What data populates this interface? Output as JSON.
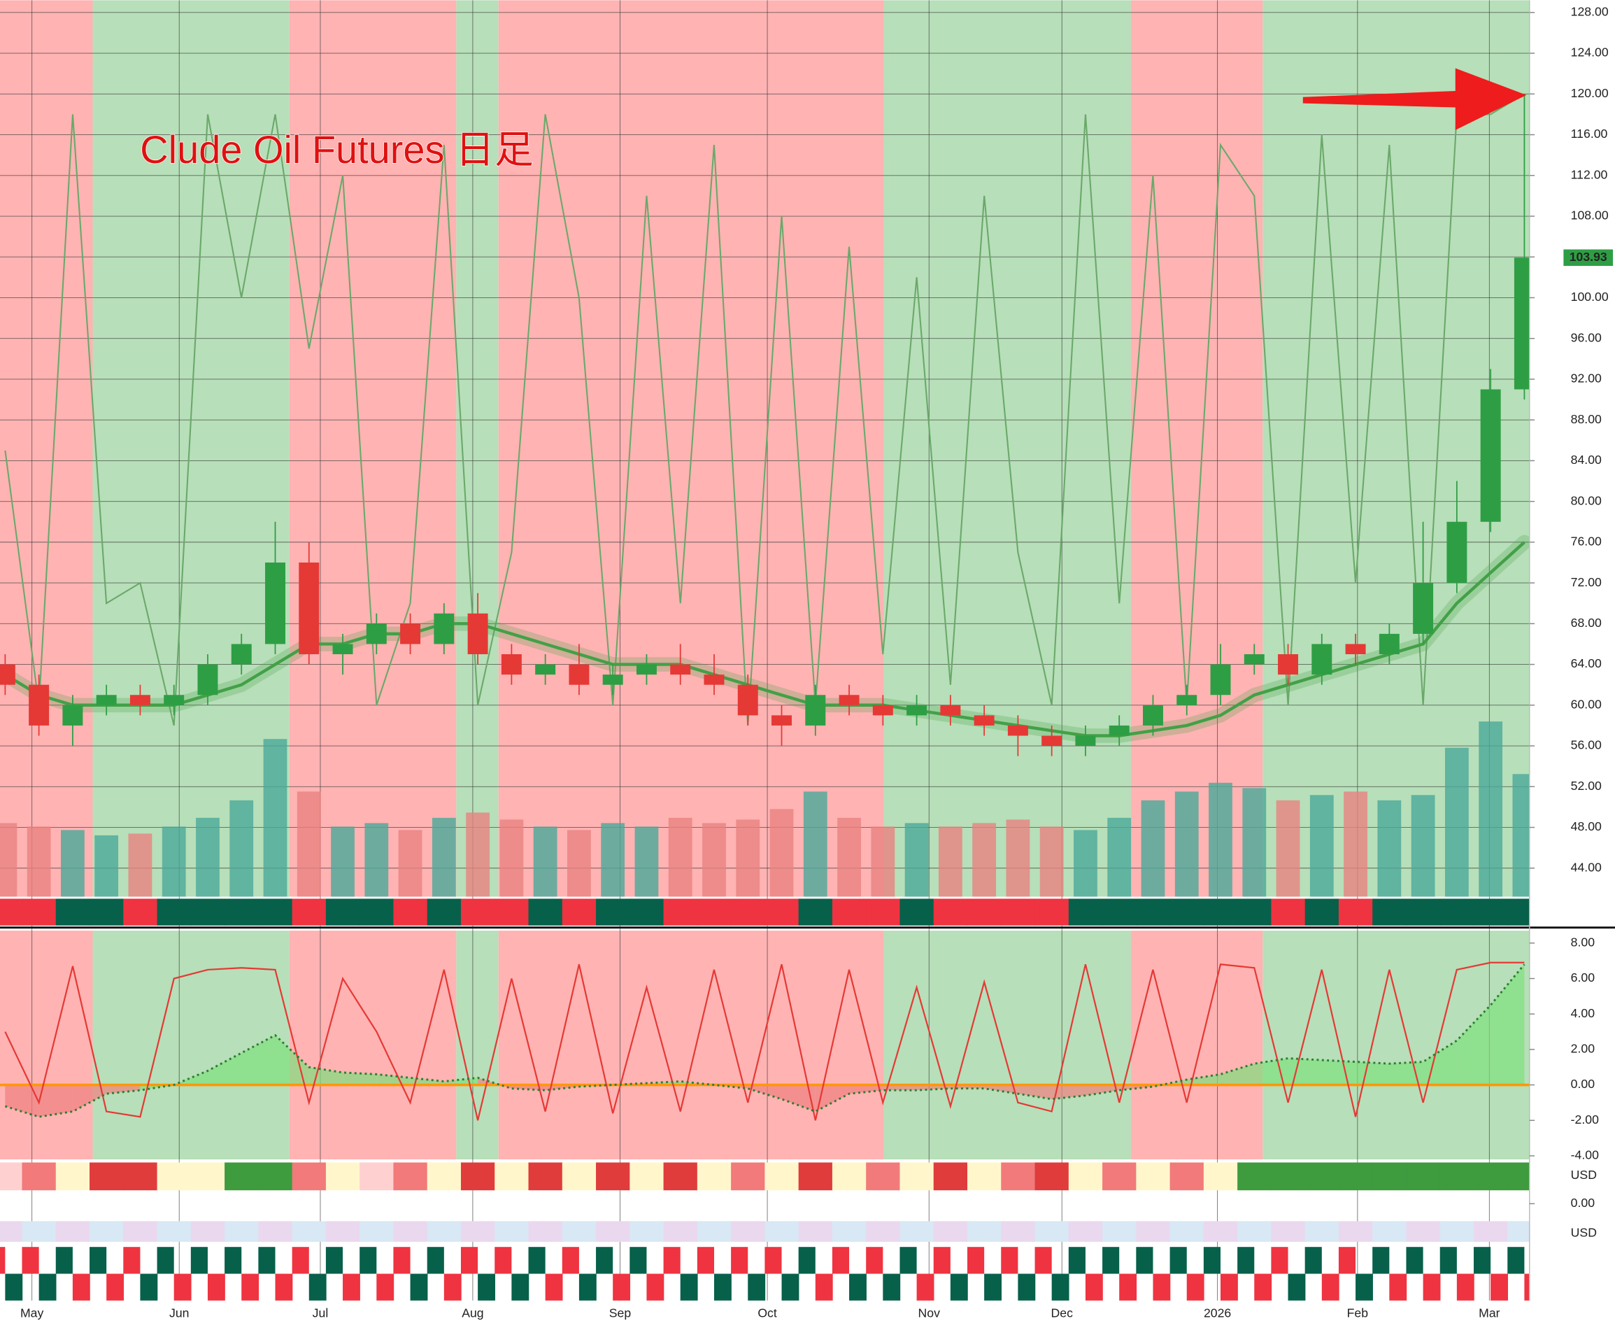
{
  "chart_data": [
    {
      "type": "candlestick",
      "title": "Clude Oil Futures 日足",
      "xticks": [
        "May",
        "Jun",
        "Jul",
        "Aug",
        "Sep",
        "Oct",
        "Nov",
        "Dec",
        "2026",
        "Feb",
        "Mar"
      ],
      "open": [
        64,
        62,
        58,
        60,
        61,
        60,
        61,
        64,
        66,
        74,
        65,
        66,
        68,
        66,
        69,
        65,
        63,
        64,
        62,
        63,
        64,
        63,
        62,
        59,
        58,
        61,
        60,
        59,
        60,
        59,
        58,
        57,
        56,
        57,
        58,
        60,
        61,
        64,
        65,
        63,
        66,
        65,
        67,
        72,
        78,
        91
      ],
      "high": [
        65,
        63,
        61,
        62,
        62,
        62,
        65,
        67,
        78,
        76,
        67,
        69,
        69,
        70,
        71,
        66,
        65,
        66,
        64,
        65,
        66,
        65,
        63,
        60,
        62,
        62,
        61,
        61,
        61,
        60,
        59,
        58,
        58,
        59,
        61,
        62,
        66,
        66,
        66,
        67,
        67,
        68,
        78,
        82,
        93,
        120
      ],
      "low": [
        61,
        57,
        56,
        59,
        59,
        59,
        60,
        63,
        65,
        64,
        63,
        65,
        65,
        65,
        64,
        62,
        62,
        61,
        61,
        62,
        62,
        61,
        58,
        56,
        57,
        59,
        58,
        58,
        58,
        57,
        55,
        55,
        55,
        56,
        57,
        59,
        60,
        63,
        62,
        62,
        64,
        64,
        66,
        71,
        77,
        90
      ],
      "close": [
        62,
        58,
        60,
        61,
        60,
        61,
        64,
        66,
        74,
        65,
        66,
        68,
        66,
        69,
        65,
        63,
        64,
        62,
        63,
        64,
        63,
        62,
        59,
        58,
        61,
        60,
        59,
        60,
        59,
        58,
        57,
        56,
        57,
        58,
        60,
        61,
        64,
        65,
        63,
        66,
        65,
        67,
        72,
        78,
        91,
        103.93
      ],
      "ma": [
        63,
        61,
        60,
        60,
        60,
        60,
        61,
        62,
        64,
        66,
        66,
        67,
        67,
        68,
        68,
        67,
        66,
        65,
        64,
        64,
        64,
        63,
        62,
        61,
        60,
        60,
        60,
        59.5,
        59,
        58.5,
        58,
        57.5,
        57,
        57,
        57.5,
        58,
        59,
        61,
        62,
        63,
        64,
        65,
        66,
        70,
        73,
        76
      ],
      "overlay": [
        85,
        60,
        118,
        70,
        72,
        58,
        118,
        100,
        118,
        95,
        112,
        60,
        70,
        115,
        60,
        75,
        118,
        100,
        60,
        110,
        70,
        115,
        58,
        108,
        60,
        105,
        65,
        102,
        62,
        110,
        75,
        60,
        118,
        70,
        112,
        60,
        115,
        110,
        60,
        116,
        72,
        115,
        60,
        118,
        118,
        120
      ],
      "up_color": "#2e9e44",
      "down_color": "#e53935",
      "ma_color": "#43a047",
      "overlay_color": "#6aa86a",
      "ylim": [
        41.2,
        129.2
      ],
      "yticks": [
        {
          "value": 44,
          "label": "44.00"
        },
        {
          "value": 48,
          "label": "48.00"
        },
        {
          "value": 52,
          "label": "52.00"
        },
        {
          "value": 56,
          "label": "56.00"
        },
        {
          "value": 60,
          "label": "60.00"
        },
        {
          "value": 64,
          "label": "64.00"
        },
        {
          "value": 68,
          "label": "68.00"
        },
        {
          "value": 72,
          "label": "72.00"
        },
        {
          "value": 76,
          "label": "76.00"
        },
        {
          "value": 80,
          "label": "80.00"
        },
        {
          "value": 84,
          "label": "84.00"
        },
        {
          "value": 88,
          "label": "88.00"
        },
        {
          "value": 92,
          "label": "92.00"
        },
        {
          "value": 96,
          "label": "96.00"
        },
        {
          "value": 100,
          "label": "100.00"
        },
        {
          "value": 104,
          "label": "104.00"
        },
        {
          "value": 108,
          "label": "108.00"
        },
        {
          "value": 112,
          "label": "112.00"
        },
        {
          "value": 116,
          "label": "116.00"
        },
        {
          "value": 120,
          "label": "120.00"
        },
        {
          "value": 124,
          "label": "124.00"
        },
        {
          "value": 128,
          "label": "128.00"
        }
      ],
      "grid": true
    },
    {
      "type": "bar",
      "values": [
        42,
        40,
        38,
        35,
        36,
        40,
        45,
        55,
        90,
        60,
        40,
        42,
        38,
        45,
        48,
        44,
        40,
        38,
        42,
        40,
        45,
        42,
        44,
        50,
        60,
        45,
        40,
        42,
        40,
        42,
        44,
        40,
        38,
        45,
        55,
        60,
        65,
        62,
        55,
        58,
        60,
        55,
        58,
        85,
        100,
        70
      ],
      "ylim": [
        0,
        100
      ]
    },
    {
      "type": "line",
      "fast": [
        3,
        -1,
        6.7,
        -1.5,
        -1.8,
        6,
        6.5,
        6.6,
        6.5,
        -1,
        6,
        3,
        -1,
        6.5,
        -2,
        6,
        -1.5,
        6.8,
        -1.6,
        5.5,
        -1.5,
        6.5,
        -1,
        6.8,
        -2,
        6.5,
        -1,
        5.5,
        -1.2,
        5.8,
        -1,
        -1.5,
        6.8,
        -1,
        6.5,
        -1,
        6.8,
        6.6,
        -1,
        6.5,
        -1.8,
        6.5,
        -1,
        6.5,
        6.9,
        6.9
      ],
      "slow": [
        -1.2,
        -1.8,
        -1.5,
        -0.5,
        -0.3,
        0,
        0.8,
        1.8,
        2.8,
        1,
        0.7,
        0.6,
        0.4,
        0.2,
        0.4,
        -0.2,
        -0.3,
        -0.1,
        0,
        0.1,
        0.2,
        0,
        -0.2,
        -0.8,
        -1.5,
        -0.5,
        -0.3,
        -0.3,
        -0.2,
        -0.2,
        -0.5,
        -0.8,
        -0.6,
        -0.3,
        -0.1,
        0.3,
        0.6,
        1.2,
        1.5,
        1.4,
        1.3,
        1.2,
        1.3,
        2.5,
        4.5,
        6.8
      ],
      "baseline": 0,
      "fast_color": "#e53935",
      "slow_color": "#2e7d32",
      "baseline_color": "#ff9800",
      "ylim": [
        -4.2,
        8.7
      ],
      "yticks": [
        {
          "value": -4,
          "label": "-4.00"
        },
        {
          "value": -2,
          "label": "-2.00"
        },
        {
          "value": 0,
          "label": "0.00"
        },
        {
          "value": 2,
          "label": "2.00"
        },
        {
          "value": 4,
          "label": "4.00"
        },
        {
          "value": 6,
          "label": "6.00"
        },
        {
          "value": 8,
          "label": "8.00"
        }
      ]
    }
  ],
  "panels": {
    "heat_unit": "USD",
    "mini_tick": {
      "value": 0,
      "label": "0.00"
    },
    "bottom_unit": "USD"
  }
}
